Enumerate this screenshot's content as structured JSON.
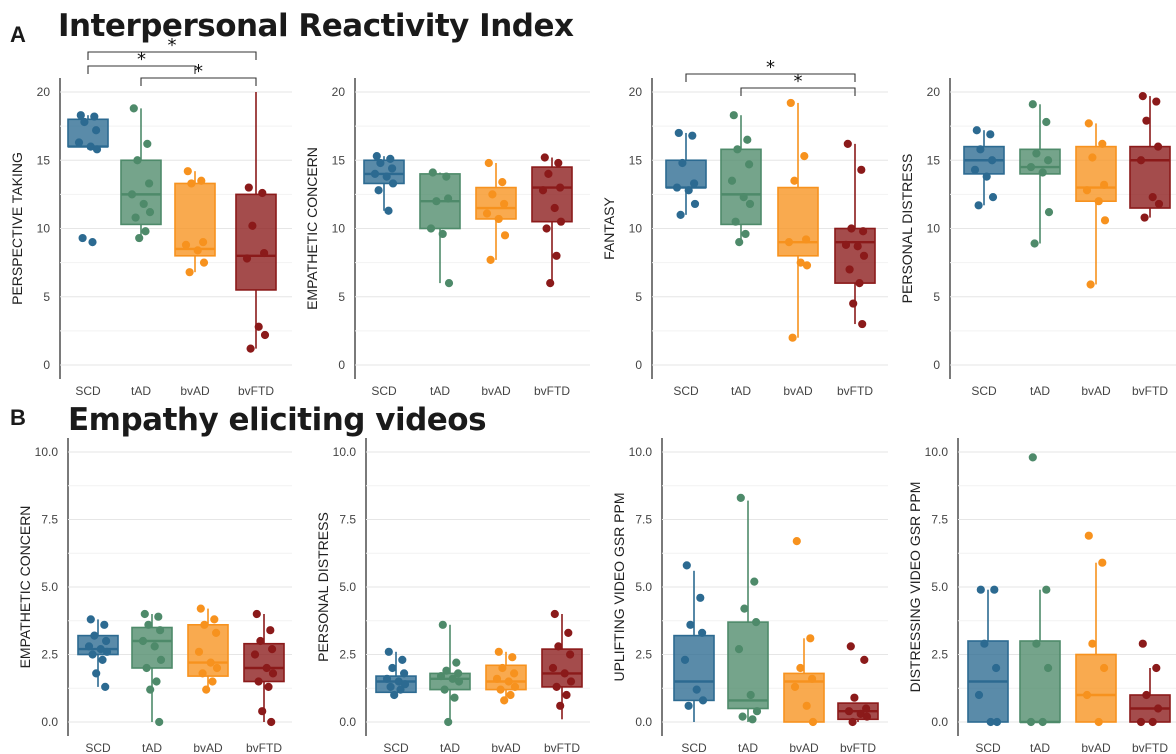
{
  "figure": {
    "section_a": {
      "letter": "A",
      "title": "Interpersonal Reactivity Index"
    },
    "section_b": {
      "letter": "B",
      "title": "Empathy eliciting videos"
    }
  },
  "colors": {
    "SCD": "#2c6a91",
    "tAD": "#4e8a6a",
    "bvAD": "#f7921e",
    "bvFTD": "#8b1a1a"
  },
  "chart_data": [
    {
      "type": "box",
      "ylabel": "PERSPECTIVE TAKING",
      "categories": [
        "SCD",
        "tAD",
        "bvAD",
        "bvFTD"
      ],
      "yticks": [
        0,
        5,
        10,
        15,
        20
      ],
      "ylim": [
        0,
        20
      ],
      "boxes": [
        {
          "q1": 16,
          "median": 16,
          "q3": 18,
          "min": 15.8,
          "max": 18.3
        },
        {
          "q1": 10.3,
          "median": 12.5,
          "q3": 15,
          "min": 9.3,
          "max": 18.8
        },
        {
          "q1": 8,
          "median": 8.5,
          "q3": 13.3,
          "min": 6.8,
          "max": 14.2
        },
        {
          "q1": 5.5,
          "median": 8,
          "q3": 12.5,
          "min": 1.2,
          "max": 20
        }
      ],
      "points": [
        [
          18.3,
          18.2,
          17.8,
          17.2,
          16.3,
          16.0,
          15.8,
          9.3,
          9.0
        ],
        [
          18.8,
          16.2,
          15.0,
          13.3,
          12.5,
          11.8,
          11.2,
          10.8,
          9.8,
          9.3
        ],
        [
          14.2,
          13.5,
          13.3,
          9.0,
          8.8,
          8.4,
          7.5,
          6.8
        ],
        [
          13.0,
          12.6,
          10.2,
          8.2,
          7.8,
          2.8,
          2.2,
          1.2
        ]
      ],
      "significance": [
        {
          "from": 0,
          "to": 3,
          "label": "*"
        },
        {
          "from": 0,
          "to": 2,
          "label": "*"
        },
        {
          "from": 1,
          "to": 3,
          "label": "*"
        }
      ]
    },
    {
      "type": "box",
      "ylabel": "EMPATHETIC CONCERN",
      "categories": [
        "SCD",
        "tAD",
        "bvAD",
        "bvFTD"
      ],
      "yticks": [
        0,
        5,
        10,
        15,
        20
      ],
      "ylim": [
        0,
        20
      ],
      "boxes": [
        {
          "q1": 13.3,
          "median": 14,
          "q3": 15,
          "min": 11.3,
          "max": 15.3
        },
        {
          "q1": 10,
          "median": 12,
          "q3": 14,
          "min": 6,
          "max": 14.1
        },
        {
          "q1": 10.7,
          "median": 11.5,
          "q3": 13,
          "min": 7.7,
          "max": 14.8
        },
        {
          "q1": 10.5,
          "median": 13,
          "q3": 14.5,
          "min": 6,
          "max": 15.2
        }
      ],
      "points": [
        [
          15.3,
          15.1,
          14.8,
          14.4,
          14.0,
          13.8,
          13.3,
          12.8,
          11.3
        ],
        [
          14.1,
          13.8,
          12.0,
          12.2,
          10.0,
          9.6,
          6.0
        ],
        [
          14.8,
          13.4,
          12.5,
          11.8,
          11.1,
          10.7,
          9.5,
          7.7
        ],
        [
          15.2,
          14.8,
          14.0,
          13.0,
          12.8,
          11.5,
          10.5,
          10.0,
          8.0,
          6.0
        ]
      ],
      "significance": []
    },
    {
      "type": "box",
      "ylabel": "FANTASY",
      "categories": [
        "SCD",
        "tAD",
        "bvAD",
        "bvFTD"
      ],
      "yticks": [
        0,
        5,
        10,
        15,
        20
      ],
      "ylim": [
        0,
        20
      ],
      "boxes": [
        {
          "q1": 13,
          "median": 13,
          "q3": 15,
          "min": 11,
          "max": 17
        },
        {
          "q1": 10.3,
          "median": 12.5,
          "q3": 15.8,
          "min": 9,
          "max": 18.3
        },
        {
          "q1": 8,
          "median": 9,
          "q3": 13,
          "min": 2,
          "max": 19.2
        },
        {
          "q1": 6,
          "median": 9,
          "q3": 10,
          "min": 3,
          "max": 16.2
        }
      ],
      "points": [
        [
          17.0,
          16.8,
          14.8,
          13.3,
          13.0,
          12.8,
          11.8,
          11.0
        ],
        [
          18.3,
          16.5,
          15.8,
          14.7,
          13.5,
          12.3,
          11.8,
          10.5,
          9.6,
          9.0
        ],
        [
          19.2,
          15.3,
          13.5,
          9.2,
          9.0,
          7.5,
          7.3,
          2.0
        ],
        [
          16.2,
          14.3,
          10.0,
          9.8,
          8.8,
          8.7,
          8.0,
          7.0,
          6.0,
          4.5,
          3.0
        ]
      ],
      "significance": [
        {
          "from": 0,
          "to": 3,
          "label": "*"
        },
        {
          "from": 1,
          "to": 3,
          "label": "*"
        }
      ]
    },
    {
      "type": "box",
      "ylabel": "PERSONAL DISTRESS",
      "categories": [
        "SCD",
        "tAD",
        "bvAD",
        "bvFTD"
      ],
      "yticks": [
        0,
        5,
        10,
        15,
        20
      ],
      "ylim": [
        0,
        20
      ],
      "boxes": [
        {
          "q1": 14,
          "median": 15,
          "q3": 16,
          "min": 11.7,
          "max": 17.2
        },
        {
          "q1": 14,
          "median": 14.5,
          "q3": 15.8,
          "min": 8.9,
          "max": 19.1
        },
        {
          "q1": 12,
          "median": 13,
          "q3": 16,
          "min": 5.9,
          "max": 17.7
        },
        {
          "q1": 11.5,
          "median": 15,
          "q3": 16,
          "min": 10.8,
          "max": 19.7
        }
      ],
      "points": [
        [
          17.2,
          16.9,
          15.8,
          15.0,
          14.3,
          13.8,
          12.3,
          11.7
        ],
        [
          19.1,
          17.8,
          15.5,
          15.0,
          14.5,
          14.1,
          11.2,
          8.9
        ],
        [
          17.7,
          16.2,
          15.2,
          13.2,
          12.8,
          12.0,
          10.6,
          5.9
        ],
        [
          19.7,
          19.3,
          17.9,
          16.0,
          15.0,
          12.3,
          11.8,
          10.8
        ]
      ],
      "significance": []
    },
    {
      "type": "box",
      "ylabel": "EMPATHETIC CONCERN",
      "categories": [
        "SCD",
        "tAD",
        "bvAD",
        "bvFTD"
      ],
      "yticks": [
        "0.0",
        "2.5",
        "5.0",
        "7.5",
        "10.0"
      ],
      "ylim": [
        0,
        10
      ],
      "boxes": [
        {
          "q1": 2.5,
          "median": 2.7,
          "q3": 3.2,
          "min": 1.3,
          "max": 3.8
        },
        {
          "q1": 2,
          "median": 3,
          "q3": 3.5,
          "min": 0,
          "max": 4
        },
        {
          "q1": 1.7,
          "median": 2.2,
          "q3": 3.6,
          "min": 1.1,
          "max": 4.2
        },
        {
          "q1": 1.5,
          "median": 2,
          "q3": 2.9,
          "min": 0,
          "max": 4
        }
      ],
      "points": [
        [
          3.8,
          3.6,
          3.2,
          3.0,
          2.8,
          2.7,
          2.6,
          2.5,
          2.3,
          1.8,
          1.3
        ],
        [
          4.0,
          3.9,
          3.6,
          3.4,
          3.0,
          2.8,
          2.3,
          2.0,
          1.5,
          1.2,
          0.0
        ],
        [
          4.2,
          3.8,
          3.6,
          3.3,
          2.6,
          2.2,
          2.0,
          1.8,
          1.5,
          1.2
        ],
        [
          4.0,
          3.4,
          3.0,
          2.7,
          2.5,
          2.0,
          1.8,
          1.5,
          1.3,
          0.4,
          0.0
        ]
      ],
      "significance": []
    },
    {
      "type": "box",
      "ylabel": "PERSONAL DISTRESS",
      "categories": [
        "SCD",
        "tAD",
        "bvAD",
        "bvFTD"
      ],
      "yticks": [
        "0.0",
        "2.5",
        "5.0",
        "7.5",
        "10.0"
      ],
      "ylim": [
        0,
        10
      ],
      "boxes": [
        {
          "q1": 1.1,
          "median": 1.5,
          "q3": 1.7,
          "min": 1,
          "max": 2.6
        },
        {
          "q1": 1.2,
          "median": 1.6,
          "q3": 1.8,
          "min": 0,
          "max": 3.6
        },
        {
          "q1": 1.2,
          "median": 1.5,
          "q3": 2.1,
          "min": 0.8,
          "max": 2.6
        },
        {
          "q1": 1.3,
          "median": 1.8,
          "q3": 2.7,
          "min": 0.1,
          "max": 4
        }
      ],
      "points": [
        [
          2.6,
          2.3,
          2.0,
          1.8,
          1.6,
          1.5,
          1.4,
          1.3,
          1.2,
          1.0
        ],
        [
          3.6,
          2.2,
          1.9,
          1.8,
          1.7,
          1.6,
          1.5,
          1.2,
          0.9,
          0.0
        ],
        [
          2.6,
          2.4,
          2.0,
          1.8,
          1.6,
          1.5,
          1.3,
          1.2,
          1.0,
          0.8
        ],
        [
          4.0,
          3.3,
          2.8,
          2.5,
          2.0,
          1.8,
          1.5,
          1.3,
          1.0,
          0.6
        ]
      ],
      "significance": []
    },
    {
      "type": "box",
      "ylabel": "UPLIFTING VIDEO GSR PPM",
      "categories": [
        "SCD",
        "tAD",
        "bvAD",
        "bvFTD"
      ],
      "yticks": [
        "0.0",
        "2.5",
        "5.0",
        "7.5",
        "10.0"
      ],
      "ylim": [
        0,
        10
      ],
      "boxes": [
        {
          "q1": 0.8,
          "median": 1.5,
          "q3": 3.2,
          "min": 0,
          "max": 5.6
        },
        {
          "q1": 0.5,
          "median": 0.8,
          "q3": 3.7,
          "min": 0,
          "max": 8.2
        },
        {
          "q1": 0,
          "median": 1.5,
          "q3": 1.8,
          "min": 0,
          "max": 3.1
        },
        {
          "q1": 0.1,
          "median": 0.4,
          "q3": 0.7,
          "min": 0,
          "max": 0.7
        }
      ],
      "points": [
        [
          5.8,
          4.6,
          3.6,
          3.3,
          2.3,
          1.2,
          0.8,
          0.6
        ],
        [
          8.3,
          5.2,
          4.2,
          3.7,
          2.7,
          1.0,
          0.4,
          0.2,
          0.1
        ],
        [
          6.7,
          3.1,
          2.0,
          1.6,
          1.3,
          0.6,
          0.0
        ],
        [
          2.8,
          2.3,
          0.9,
          0.5,
          0.4,
          0.3,
          0.2,
          0.0
        ]
      ],
      "significance": []
    },
    {
      "type": "box",
      "ylabel": "DISTRESSING VIDEO GSR PPM",
      "categories": [
        "SCD",
        "tAD",
        "bvAD",
        "bvFTD"
      ],
      "yticks": [
        "0.0",
        "2.5",
        "5.0",
        "7.5",
        "10.0"
      ],
      "ylim": [
        0,
        10
      ],
      "boxes": [
        {
          "q1": 0,
          "median": 1.5,
          "q3": 3,
          "min": 0,
          "max": 4.9
        },
        {
          "q1": 0,
          "median": 0,
          "q3": 3,
          "min": 0,
          "max": 4.9
        },
        {
          "q1": 0,
          "median": 1,
          "q3": 2.5,
          "min": 0,
          "max": 5.9
        },
        {
          "q1": 0,
          "median": 0.5,
          "q3": 1,
          "min": 0,
          "max": 2
        }
      ],
      "points": [
        [
          4.9,
          4.9,
          2.9,
          2.0,
          1.0,
          0.0,
          0.0
        ],
        [
          9.8,
          4.9,
          2.9,
          2.0,
          0.0,
          0.0
        ],
        [
          6.9,
          5.9,
          2.9,
          2.0,
          1.0,
          0.0
        ],
        [
          2.9,
          2.0,
          1.0,
          0.5,
          0.0,
          0.0
        ]
      ],
      "significance": []
    }
  ]
}
